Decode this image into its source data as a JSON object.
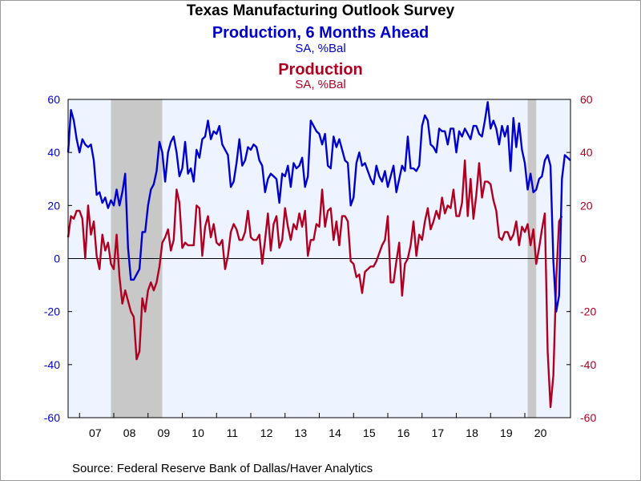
{
  "chart_data": {
    "type": "line",
    "title": "Texas Manufacturing Outlook Survey",
    "subtitle": "",
    "source": "Source:  Federal Reserve Bank of Dallas/Haver Analytics",
    "x_start": "2006-09",
    "x_tick_labels": [
      "07",
      "08",
      "09",
      "10",
      "11",
      "12",
      "13",
      "14",
      "15",
      "16",
      "17",
      "18",
      "19",
      "20"
    ],
    "ylim": [
      -60,
      60
    ],
    "y_ticks": [
      -60,
      -40,
      -20,
      0,
      20,
      40,
      60
    ],
    "y_ticks_right": [
      -60,
      -40,
      -20,
      0,
      20,
      40,
      60
    ],
    "grid": false,
    "zero_line": true,
    "recessions": [
      [
        "2007-12",
        "2009-06"
      ],
      [
        "2020-02",
        "2020-05"
      ]
    ],
    "colors": {
      "series1": "#0000cc",
      "series2": "#b00022",
      "background": "#eef4ff",
      "recession": "#c8c8c8"
    },
    "series": [
      {
        "name": "Production, 6 Months Ahead",
        "unit_label": "SA, %Bal",
        "axis": "left",
        "values": [
          40,
          56,
          52,
          45,
          40,
          45,
          43,
          42,
          43,
          37,
          24,
          25,
          21,
          23,
          19,
          22,
          20,
          26,
          20,
          25,
          32,
          4,
          -8,
          -8,
          -6,
          -4,
          10,
          10,
          20,
          26,
          28,
          33,
          44,
          40,
          29,
          40,
          44,
          46,
          40,
          31,
          34,
          44,
          32,
          34,
          29,
          41,
          38,
          45,
          46,
          52,
          45,
          48,
          47,
          50,
          43,
          41,
          39,
          27,
          29,
          36,
          45,
          35,
          37,
          42,
          41,
          43,
          42,
          37,
          35,
          25,
          30,
          32,
          31,
          30,
          21,
          32,
          31,
          35,
          27,
          36,
          34,
          35,
          38,
          27,
          31,
          52,
          50,
          48,
          47,
          43,
          47,
          35,
          34,
          46,
          42,
          45,
          41,
          37,
          36,
          20,
          23,
          36,
          40,
          35,
          36,
          33,
          30,
          28,
          35,
          31,
          29,
          33,
          27,
          31,
          35,
          25,
          30,
          35,
          33,
          46,
          34,
          34,
          33,
          35,
          50,
          54,
          52,
          43,
          42,
          40,
          49,
          48,
          48,
          43,
          49,
          49,
          40,
          48,
          46,
          49,
          47,
          45,
          50,
          50,
          47,
          46,
          52,
          59,
          49,
          52,
          49,
          43,
          50,
          46,
          50,
          33,
          53,
          42,
          51,
          41,
          36,
          26,
          32,
          25,
          26,
          30,
          31,
          37,
          39,
          35,
          -1,
          -20,
          -14,
          30,
          39,
          38,
          37
        ]
      },
      {
        "name": "Production",
        "unit_label": "SA, %Bal",
        "axis": "right",
        "values": [
          8,
          16,
          15,
          18,
          18,
          15,
          0,
          20,
          9,
          14,
          1,
          -4,
          9,
          3,
          6,
          -2,
          -4,
          9,
          -7,
          -17,
          -12,
          -16,
          -20,
          -22,
          -38,
          -35,
          -15,
          -20,
          -12,
          -9,
          -12,
          -9,
          -3,
          6,
          8,
          11,
          3,
          7,
          26,
          21,
          4,
          6,
          5,
          5,
          5,
          20,
          19,
          1,
          12,
          16,
          8,
          13,
          6,
          5,
          7,
          -4,
          1,
          10,
          13,
          11,
          7,
          7,
          10,
          18,
          8,
          7,
          7,
          9,
          -2,
          7,
          17,
          3,
          13,
          16,
          4,
          7,
          19,
          12,
          7,
          13,
          11,
          17,
          12,
          18,
          1,
          7,
          7,
          13,
          12,
          26,
          12,
          18,
          19,
          7,
          14,
          5,
          16,
          16,
          14,
          -1,
          -2,
          -7,
          -6,
          -13,
          -5,
          -4,
          -3,
          -3,
          -1,
          2,
          5,
          7,
          16,
          -9,
          -9,
          -1,
          6,
          -14,
          -2,
          0,
          5,
          14,
          1,
          9,
          7,
          14,
          19,
          11,
          14,
          18,
          15,
          23,
          17,
          20,
          19,
          26,
          16,
          16,
          21,
          37,
          16,
          30,
          15,
          24,
          36,
          23,
          29,
          29,
          28,
          22,
          18,
          8,
          7,
          10,
          10,
          7,
          9,
          14,
          5,
          12,
          10,
          13,
          5,
          11,
          -2,
          4,
          11,
          17,
          -35,
          -56,
          -44,
          -8,
          14,
          16
        ]
      }
    ]
  }
}
